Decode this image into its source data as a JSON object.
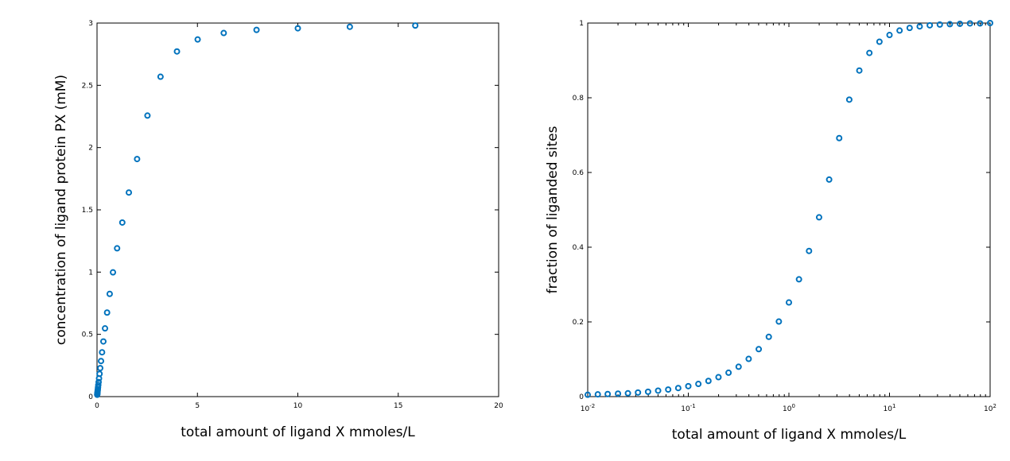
{
  "chart_data": [
    {
      "type": "scatter",
      "xlabel": "total amount of ligand X mmoles/L",
      "ylabel": "concentration of ligand protein PX (mM)",
      "xlim": [
        0,
        20
      ],
      "ylim": [
        0,
        3
      ],
      "x_scale": "linear",
      "x_ticks": [
        "0",
        "5",
        "10",
        "15",
        "20"
      ],
      "y_ticks": [
        "0",
        "0.5",
        "1",
        "1.5",
        "2",
        "2.5",
        "3"
      ],
      "grid": false,
      "marker": "open-circle",
      "marker_color": "#0072bd",
      "series": [
        {
          "x": [
            0.01,
            0.0126,
            0.0158,
            0.02,
            0.0251,
            0.0316,
            0.0398,
            0.0501,
            0.0631,
            0.0794,
            0.1,
            0.1259,
            0.1585,
            0.1995,
            0.2512,
            0.3162,
            0.3981,
            0.5012,
            0.631,
            0.7943,
            1.0,
            1.2589,
            1.5849,
            1.9953,
            2.5119,
            3.1623,
            3.9811,
            5.0119,
            6.3096,
            7.9433,
            10.0,
            12.5893,
            15.8489
          ],
          "y": [
            0.015,
            0.019,
            0.024,
            0.03,
            0.037,
            0.047,
            0.059,
            0.074,
            0.093,
            0.117,
            0.146,
            0.183,
            0.229,
            0.286,
            0.356,
            0.443,
            0.548,
            0.675,
            0.825,
            0.998,
            1.191,
            1.398,
            1.639,
            1.908,
            2.257,
            2.569,
            2.772,
            2.868,
            2.92,
            2.945,
            2.958,
            2.97,
            2.98
          ]
        }
      ]
    },
    {
      "type": "scatter",
      "xlabel": "total amount of ligand X mmoles/L",
      "ylabel": "fraction of liganded sites",
      "xlim": [
        0.01,
        100
      ],
      "ylim": [
        0,
        1
      ],
      "x_scale": "log",
      "x_ticks": [
        {
          "base": "10",
          "exp": "-2",
          "value": 0.01
        },
        {
          "base": "10",
          "exp": "-1",
          "value": 0.1
        },
        {
          "base": "10",
          "exp": "0",
          "value": 1
        },
        {
          "base": "10",
          "exp": "1",
          "value": 10
        },
        {
          "base": "10",
          "exp": "2",
          "value": 100
        }
      ],
      "y_ticks": [
        "0",
        "0.2",
        "0.4",
        "0.6",
        "0.8",
        "1"
      ],
      "grid": false,
      "marker": "open-circle",
      "marker_color": "#0072bd",
      "series": [
        {
          "x": [
            0.01,
            0.0126,
            0.0158,
            0.02,
            0.0251,
            0.0316,
            0.0398,
            0.0501,
            0.0631,
            0.0794,
            0.1,
            0.1259,
            0.1585,
            0.1995,
            0.2512,
            0.3162,
            0.3981,
            0.5012,
            0.631,
            0.7943,
            1.0,
            1.2589,
            1.5849,
            1.9953,
            2.5119,
            3.1623,
            3.9811,
            5.0119,
            6.3096,
            7.9433,
            10.0,
            12.5893,
            15.8489,
            19.9526,
            25.1189,
            31.6228,
            39.8107,
            50.1187,
            63.0957,
            79.4328,
            100.0
          ],
          "y": [
            0.005,
            0.006,
            0.007,
            0.008,
            0.009,
            0.011,
            0.013,
            0.016,
            0.019,
            0.023,
            0.028,
            0.034,
            0.042,
            0.052,
            0.064,
            0.08,
            0.101,
            0.127,
            0.16,
            0.201,
            0.252,
            0.314,
            0.39,
            0.48,
            0.581,
            0.692,
            0.795,
            0.873,
            0.92,
            0.95,
            0.968,
            0.98,
            0.987,
            0.991,
            0.994,
            0.996,
            0.997,
            0.998,
            0.999,
            0.999,
            1.0
          ]
        }
      ]
    }
  ]
}
